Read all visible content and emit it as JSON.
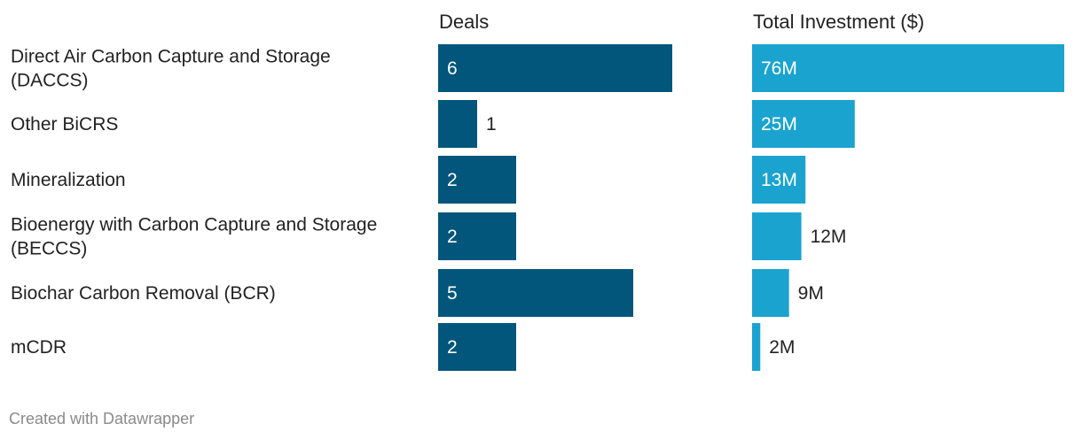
{
  "chart_data": {
    "type": "bar",
    "orientation": "horizontal",
    "categories": [
      [
        "Direct Air Carbon Capture and Storage",
        "(DACCS)"
      ],
      [
        "Other BiCRS"
      ],
      [
        "Mineralization"
      ],
      [
        "Bioenergy with Carbon Capture and Storage",
        "(BECCS)"
      ],
      [
        "Biochar Carbon Removal (BCR)"
      ],
      [
        "mCDR"
      ]
    ],
    "series": [
      {
        "name": "Deals",
        "values": [
          6,
          1,
          2,
          2,
          5,
          2
        ],
        "labels": [
          "6",
          "1",
          "2",
          "2",
          "5",
          "2"
        ],
        "color": "#02557b",
        "xlim": [
          0,
          6
        ]
      },
      {
        "name": "Total Investment ($)",
        "values": [
          76,
          25,
          13,
          12,
          9,
          2
        ],
        "labels": [
          "76M",
          "25M",
          "13M",
          "12M",
          "9M",
          "2M"
        ],
        "color": "#1ba3cf",
        "xlim": [
          0,
          76
        ]
      }
    ],
    "label_color_inside": "#ffffff",
    "label_color_outside": "#222222",
    "grid": false
  },
  "footer": "Created with Datawrapper"
}
